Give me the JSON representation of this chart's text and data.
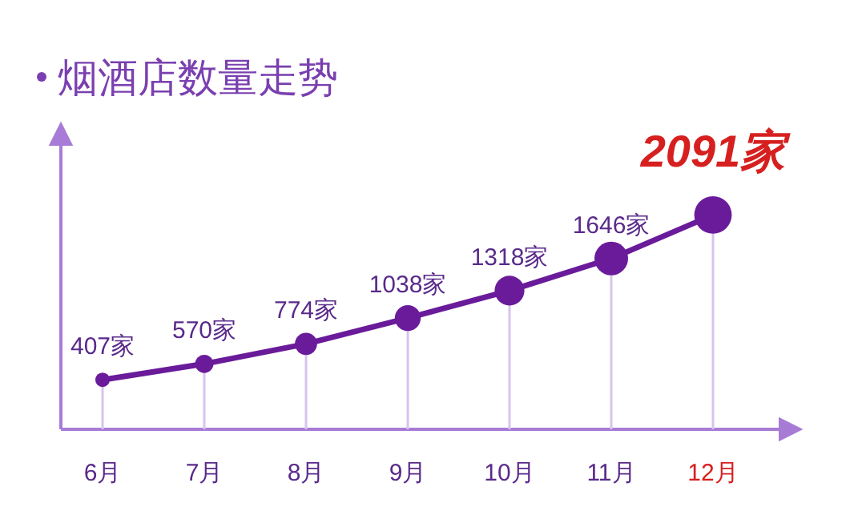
{
  "chart_data": {
    "type": "line",
    "title": "烟酒店数量走势",
    "categories": [
      "6月",
      "7月",
      "8月",
      "9月",
      "10月",
      "11月",
      "12月"
    ],
    "series": [
      {
        "color": "#6a1b9a",
        "values": [
          407,
          570,
          774,
          1038,
          1318,
          1646,
          2091
        ],
        "value_labels": [
          "407家",
          "570家",
          "774家",
          "1038家",
          "1318家",
          "1646家",
          "2091家"
        ]
      }
    ],
    "marker": "circle",
    "line_style": "solid",
    "grid": "x",
    "tick_labels": "x"
  }
}
